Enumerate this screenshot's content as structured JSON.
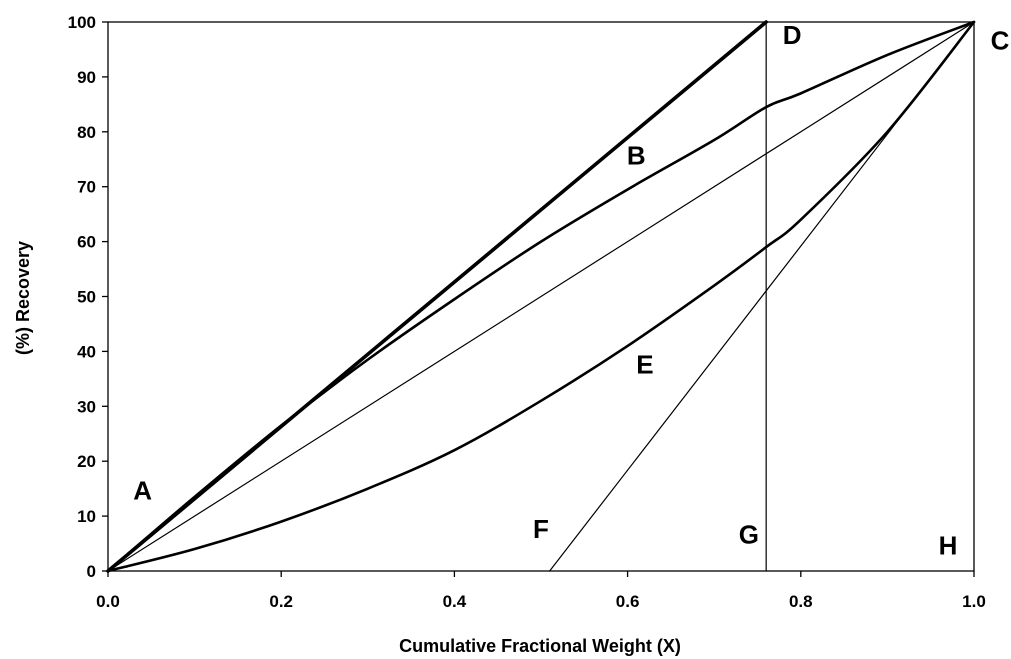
{
  "chart_data": {
    "type": "line",
    "title": "",
    "xlabel": "Cumulative Fractional Weight (X)",
    "ylabel": "(%)  Recovery",
    "xlim": [
      0,
      1
    ],
    "ylim": [
      0,
      100
    ],
    "x_ticks": [
      0.0,
      0.2,
      0.4,
      0.6,
      0.8,
      1.0
    ],
    "x_tick_labels": [
      "0.0",
      "0.2",
      "0.4",
      "0.6",
      "0.8",
      "1.0"
    ],
    "y_ticks": [
      0,
      10,
      20,
      30,
      40,
      50,
      60,
      70,
      80,
      90,
      100
    ],
    "y_tick_labels": [
      "0",
      "10",
      "20",
      "30",
      "40",
      "50",
      "60",
      "70",
      "80",
      "90",
      "100"
    ],
    "grid": false,
    "legend": "none",
    "series": [
      {
        "x": [
          0,
          0.76
        ],
        "y": [
          0,
          100
        ],
        "style": "thick"
      },
      {
        "x": [
          0,
          0.1,
          0.2,
          0.3,
          0.4,
          0.5,
          0.6,
          0.7,
          0.76,
          0.8,
          0.9,
          1.0
        ],
        "y": [
          0,
          13.5,
          26.5,
          38.5,
          49.5,
          60,
          69.5,
          78.5,
          84.5,
          87,
          94,
          100
        ],
        "style": "medium"
      },
      {
        "x": [
          0,
          1
        ],
        "y": [
          0,
          100
        ],
        "style": "thin"
      },
      {
        "x": [
          0,
          0.1,
          0.2,
          0.3,
          0.4,
          0.5,
          0.6,
          0.7,
          0.76,
          0.8,
          0.9,
          1.0
        ],
        "y": [
          0,
          4,
          9,
          15,
          22,
          31,
          41,
          52,
          59,
          64,
          80,
          100
        ],
        "style": "medium"
      },
      {
        "x": [
          0.51,
          1.0
        ],
        "y": [
          0,
          100
        ],
        "style": "thin"
      },
      {
        "x": [
          0.76,
          0.76
        ],
        "y": [
          0,
          100
        ],
        "style": "thin"
      }
    ],
    "annotations": [
      {
        "text": "A",
        "x": 0.04,
        "y": 13
      },
      {
        "text": "B",
        "x": 0.61,
        "y": 74
      },
      {
        "text": "C",
        "x": 1.03,
        "y": 95
      },
      {
        "text": "D",
        "x": 0.79,
        "y": 96
      },
      {
        "text": "E",
        "x": 0.62,
        "y": 36
      },
      {
        "text": "F",
        "x": 0.5,
        "y": 6
      },
      {
        "text": "G",
        "x": 0.74,
        "y": 5
      },
      {
        "text": "H",
        "x": 0.97,
        "y": 3
      }
    ]
  }
}
